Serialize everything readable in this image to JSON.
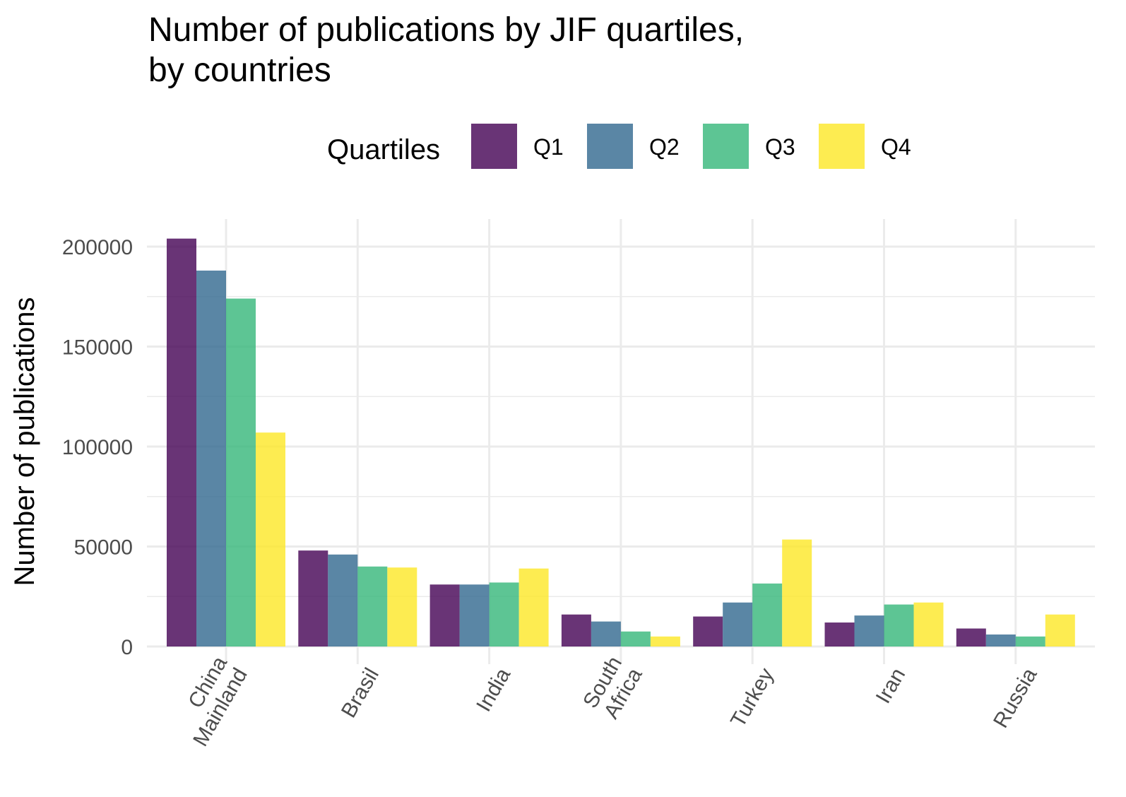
{
  "chart_data": {
    "type": "bar",
    "title_lines": [
      "Number of publications by JIF quartiles,",
      "by countries"
    ],
    "xlabel": "",
    "ylabel": "Number of publications",
    "ylim": [
      0,
      212000
    ],
    "yticks": [
      0,
      50000,
      100000,
      150000,
      200000
    ],
    "grid": true,
    "legend": {
      "title": "Quartiles",
      "position": "top"
    },
    "categories": [
      [
        "China",
        "Mainland"
      ],
      [
        "Brasil"
      ],
      [
        "India"
      ],
      [
        "South",
        "Africa"
      ],
      [
        "Turkey"
      ],
      [
        "Iran"
      ],
      [
        "Russia"
      ]
    ],
    "series": [
      {
        "name": "Q1",
        "color": "#440154",
        "values": [
          204000,
          48000,
          31000,
          16000,
          15000,
          12000,
          9000
        ]
      },
      {
        "name": "Q2",
        "color": "#31688e",
        "values": [
          188000,
          46000,
          31000,
          12500,
          22000,
          15500,
          6000
        ]
      },
      {
        "name": "Q3",
        "color": "#35b779",
        "values": [
          174000,
          40000,
          32000,
          7500,
          31500,
          21000,
          5000
        ]
      },
      {
        "name": "Q4",
        "color": "#fde725",
        "values": [
          107000,
          39500,
          39000,
          5000,
          53500,
          22000,
          16000
        ]
      }
    ],
    "bar_opacity": 0.8
  }
}
